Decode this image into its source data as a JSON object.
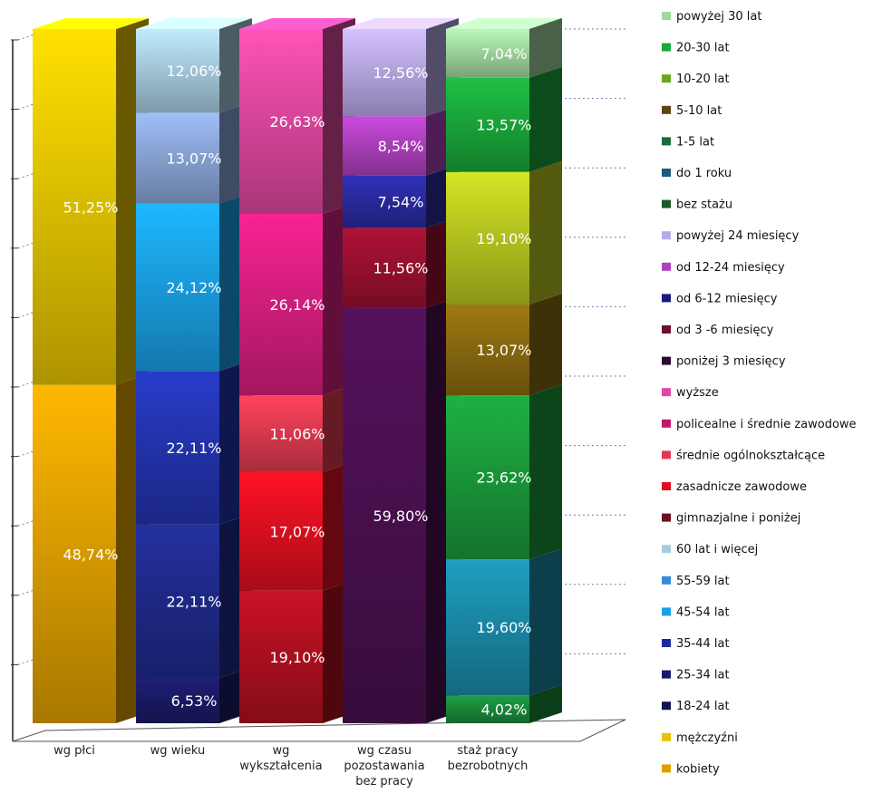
{
  "chart_data": {
    "type": "bar",
    "stacked": true,
    "percent_stacked": true,
    "three_d": true,
    "title": "",
    "xlabel": "",
    "ylabel": "",
    "ylim": [
      0,
      100
    ],
    "grid": true,
    "legend_position": "right",
    "categories": [
      "wg płci",
      "wg wieku",
      "wg wykształcenia",
      "wg czasu pozostawania bez pracy",
      "staż pracy bezrobotnych"
    ],
    "series": [
      {
        "category": "wg płci",
        "name": "kobiety",
        "value": 48.74,
        "label": "48,74%",
        "color": "#e0a000"
      },
      {
        "category": "wg płci",
        "name": "mężczyźni",
        "value": 51.25,
        "label": "51,25%",
        "color": "#e8c400"
      },
      {
        "category": "wg wieku",
        "name": "18-24 lat",
        "value": 6.53,
        "label": "6,53%",
        "color": "#1a1a66"
      },
      {
        "category": "wg wieku",
        "name": "25-34 lat",
        "value": 22.11,
        "label": "22,11%",
        "color": "#1f2a8a"
      },
      {
        "category": "wg wieku",
        "name": "35-44 lat",
        "value": 22.11,
        "label": "22,11%",
        "color": "#2434b0"
      },
      {
        "category": "wg wieku",
        "name": "45-54 lat",
        "value": 24.12,
        "label": "24,12%",
        "color": "#1aa0e8"
      },
      {
        "category": "wg wieku",
        "name": "55-59 lat",
        "value": 13.07,
        "label": "13,07%",
        "color": "#8aa6d8"
      },
      {
        "category": "wg wieku",
        "name": "60 lat i więcej",
        "value": 12.06,
        "label": "12,06%",
        "color": "#a8cce0"
      },
      {
        "category": "wg wykształcenia",
        "name": "gimnazjalne i poniżej",
        "value": 19.1,
        "label": "19,10%",
        "color": "#b01020"
      },
      {
        "category": "wg wykształcenia",
        "name": "zasadnicze zawodowe",
        "value": 17.07,
        "label": "17,07%",
        "color": "#e01020"
      },
      {
        "category": "wg wykształcenia",
        "name": "średnie ogólnokształcące",
        "value": 11.06,
        "label": "11,06%",
        "color": "#e03a50"
      },
      {
        "category": "wg wykształcenia",
        "name": "policealne i średnie zawodowe",
        "value": 26.14,
        "label": "26,14%",
        "color": "#d81e80"
      },
      {
        "category": "wg wykształcenia",
        "name": "wyższe",
        "value": 26.63,
        "label": "26,63%",
        "color": "#e048a0"
      },
      {
        "category": "wg czasu pozostawania bez pracy",
        "name": "poniżej 3 miesięcy",
        "value": 59.8,
        "label": "59,80%",
        "color": "#4a1050"
      },
      {
        "category": "wg czasu pozostawania bez pracy",
        "name": "od 3 -6 miesięcy",
        "value": 11.56,
        "label": "11,56%",
        "color": "#9a1030"
      },
      {
        "category": "wg czasu pozostawania bez pracy",
        "name": "od 6-12 miesięcy",
        "value": 7.54,
        "label": "7,54%",
        "color": "#2a2aa0"
      },
      {
        "category": "wg czasu pozostawania bez pracy",
        "name": "od 12-24 miesięcy",
        "value": 8.54,
        "label": "8,54%",
        "color": "#b040c0"
      },
      {
        "category": "wg czasu pozostawania bez pracy",
        "name": "powyżej 24 miesięcy",
        "value": 12.56,
        "label": "12,56%",
        "color": "#b8a8e8"
      },
      {
        "category": "staż pracy bezrobotnych",
        "name": "bez stażu",
        "value": 4.02,
        "label": "4,02%",
        "color": "#1a8a3a"
      },
      {
        "category": "staż pracy bezrobotnych",
        "name": "do 1 roku",
        "value": 19.6,
        "label": "19,60%",
        "color": "#1a8aa8"
      },
      {
        "category": "staż pracy bezrobotnych",
        "name": "1-5 lat",
        "value": 23.62,
        "label": "23,62%",
        "color": "#1a9a3a"
      },
      {
        "category": "staż pracy bezrobotnych",
        "name": "5-10 lat",
        "value": 13.07,
        "label": "13,07%",
        "color": "#8a6a10"
      },
      {
        "category": "staż pracy bezrobotnych",
        "name": "10-20 lat",
        "value": 19.1,
        "label": "19,10%",
        "color": "#b8c820"
      },
      {
        "category": "staż pracy bezrobotnych",
        "name": "20-30 lat",
        "value": 13.57,
        "label": "13,57%",
        "color": "#1aa83a"
      },
      {
        "category": "staż pracy bezrobotnych",
        "name": "powyżej 30 lat",
        "value": 7.04,
        "label": "7,04%",
        "color": "#a0d8a0"
      }
    ],
    "legend": [
      {
        "name": "powyżej 30 lat",
        "color": "#a0d8a0"
      },
      {
        "name": "20-30 lat",
        "color": "#1aa83a"
      },
      {
        "name": "10-20 lat",
        "color": "#6aa818"
      },
      {
        "name": "5-10 lat",
        "color": "#5a4410"
      },
      {
        "name": "1-5 lat",
        "color": "#1a6a3a"
      },
      {
        "name": "do 1 roku",
        "color": "#1a5a7a"
      },
      {
        "name": "bez stażu",
        "color": "#1a5a2a"
      },
      {
        "name": "powyżej 24 miesięcy",
        "color": "#b8a8e8"
      },
      {
        "name": "od 12-24 miesięcy",
        "color": "#b040c0"
      },
      {
        "name": "od 6-12 miesięcy",
        "color": "#1a1a80"
      },
      {
        "name": "od 3 -6 miesięcy",
        "color": "#6a1030"
      },
      {
        "name": "poniżej 3 miesięcy",
        "color": "#2a0a30"
      },
      {
        "name": "wyższe",
        "color": "#e048a0"
      },
      {
        "name": "policealne i średnie zawodowe",
        "color": "#c01870"
      },
      {
        "name": "średnie ogólnokształcące",
        "color": "#e03a50"
      },
      {
        "name": "zasadnicze zawodowe",
        "color": "#e01020"
      },
      {
        "name": "gimnazjalne i poniżej",
        "color": "#6a1020"
      },
      {
        "name": "60 lat i więcej",
        "color": "#a8cce0"
      },
      {
        "name": "55-59 lat",
        "color": "#3a8ad8"
      },
      {
        "name": "45-54 lat",
        "color": "#1aa0e8"
      },
      {
        "name": "35-44 lat",
        "color": "#1a2aa0"
      },
      {
        "name": "25-34 lat",
        "color": "#1a1a70"
      },
      {
        "name": "18-24 lat",
        "color": "#141450"
      },
      {
        "name": "mężczyźni",
        "color": "#e8c400"
      },
      {
        "name": "kobiety",
        "color": "#e0a000"
      }
    ]
  },
  "category_label_lines": [
    [
      "wg płci"
    ],
    [
      "wg wieku"
    ],
    [
      "wg",
      "wykształcenia"
    ],
    [
      "wg czasu",
      "pozostawania",
      "bez pracy"
    ],
    [
      "staż pracy",
      "bezrobotnych"
    ]
  ]
}
